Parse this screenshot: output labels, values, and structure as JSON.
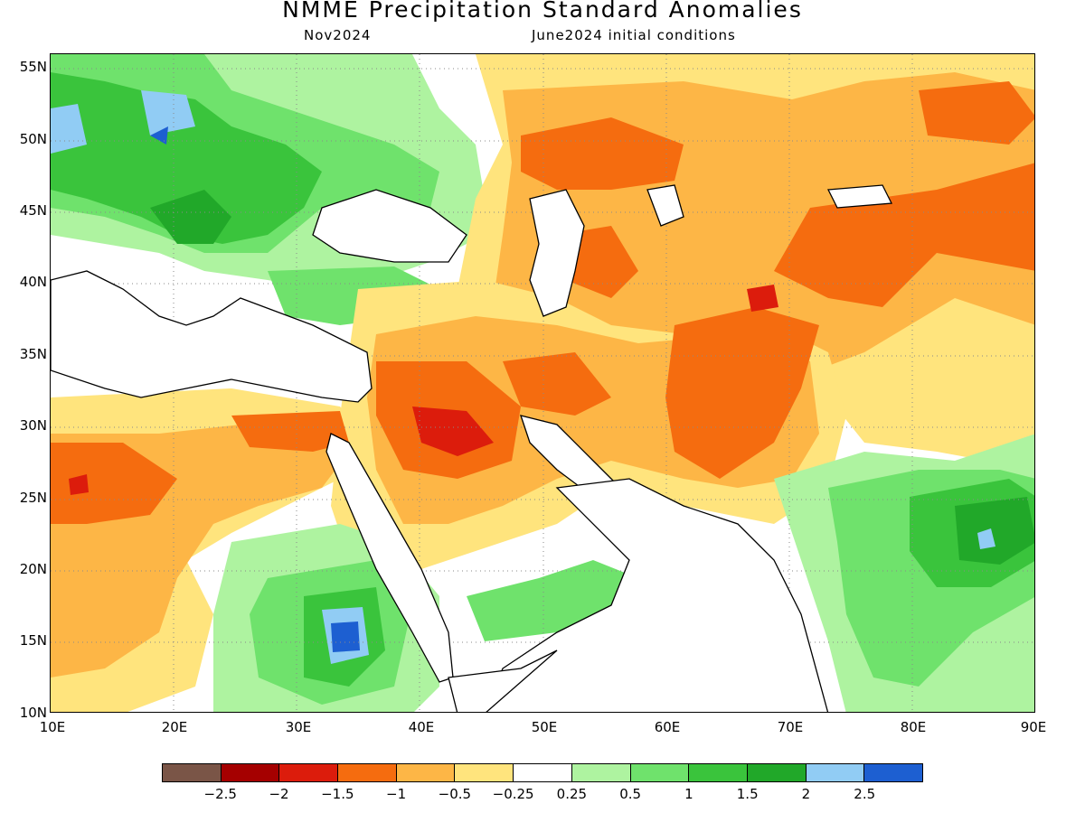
{
  "title": "NMME Precipitation Standard Anomalies",
  "subtitle_left": "Nov2024",
  "subtitle_right": "June2024 initial conditions",
  "lat_labels": [
    "55N",
    "50N",
    "45N",
    "40N",
    "35N",
    "30N",
    "25N",
    "20N",
    "15N",
    "10N"
  ],
  "lon_labels": [
    "10E",
    "20E",
    "30E",
    "40E",
    "50E",
    "60E",
    "70E",
    "80E",
    "90E"
  ],
  "colors": {
    "lt_m3": "#7a5547",
    "lt_m25": "#a50000",
    "m2": "#dc1c0c",
    "m15": "#f56c0f",
    "m1": "#fdb646",
    "m05": "#ffe47d",
    "zero": "#ffffff",
    "p025": "#aef3a0",
    "p05": "#6fe26c",
    "p1": "#3ac43c",
    "p15": "#21a829",
    "p2": "#91ccf4",
    "p25": "#1d5fd1"
  },
  "colorbar": {
    "colors": [
      "#7a5547",
      "#a50000",
      "#dc1c0c",
      "#f56c0f",
      "#fdb646",
      "#ffe47d",
      "#ffffff",
      "#aef3a0",
      "#6fe26c",
      "#3ac43c",
      "#21a829",
      "#91ccf4",
      "#1d5fd1"
    ],
    "labels": [
      "−2.5",
      "−2",
      "−1.5",
      "−1",
      "−0.5",
      "−0.25",
      "0.25",
      "0.5",
      "1",
      "1.5",
      "2",
      "2.5"
    ]
  }
}
